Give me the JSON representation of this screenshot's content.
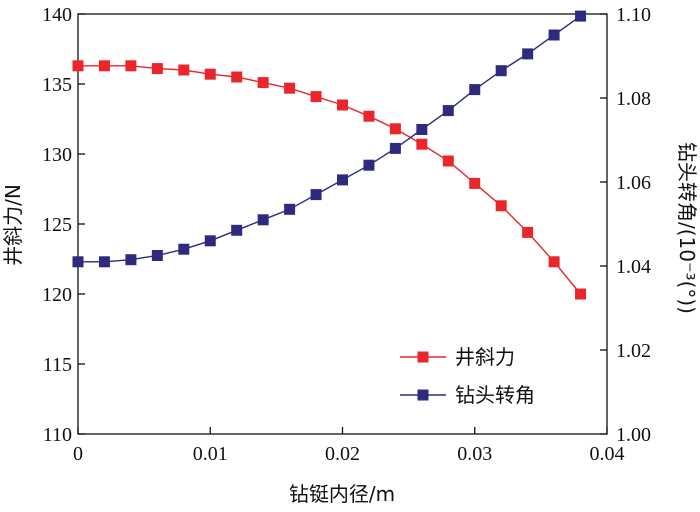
{
  "chart_data": {
    "type": "line",
    "xlabel": "钻铤内径/m",
    "ylabel": "井斜力/N",
    "y2label": "钻头转角/(10⁻³(°))",
    "x_ticks": [
      "0",
      "0.01",
      "0.02",
      "0.03",
      "0.04"
    ],
    "y_ticks": [
      "110",
      "115",
      "120",
      "125",
      "130",
      "135",
      "140"
    ],
    "y2_ticks": [
      "1.00",
      "1.02",
      "1.04",
      "1.06",
      "1.08",
      "1.10"
    ],
    "xlim": [
      0,
      0.04
    ],
    "ylim": [
      110,
      140
    ],
    "y2lim": [
      1.0,
      1.1
    ],
    "grid": false,
    "legend_position": "bottom-right",
    "x": [
      0,
      0.002,
      0.004,
      0.006,
      0.008,
      0.01,
      0.012,
      0.014,
      0.016,
      0.018,
      0.02,
      0.022,
      0.024,
      0.026,
      0.028,
      0.03,
      0.032,
      0.034,
      0.036,
      0.038
    ],
    "series": [
      {
        "name": "井斜力",
        "axis": "left",
        "color": "#e8262b",
        "marker": "square",
        "values": [
          136.3,
          136.3,
          136.3,
          136.1,
          136.0,
          135.7,
          135.5,
          135.1,
          134.7,
          134.1,
          133.5,
          132.7,
          131.8,
          130.7,
          129.5,
          127.9,
          126.3,
          124.4,
          122.3,
          120.0
        ]
      },
      {
        "name": "钻头转角",
        "axis": "right",
        "color": "#2e2a7e",
        "marker": "square",
        "values": [
          1.041,
          1.041,
          1.0415,
          1.0425,
          1.044,
          1.046,
          1.0485,
          1.051,
          1.0535,
          1.057,
          1.0605,
          1.064,
          1.068,
          1.0725,
          1.077,
          1.082,
          1.0865,
          1.0905,
          1.095,
          1.0995
        ]
      }
    ]
  }
}
